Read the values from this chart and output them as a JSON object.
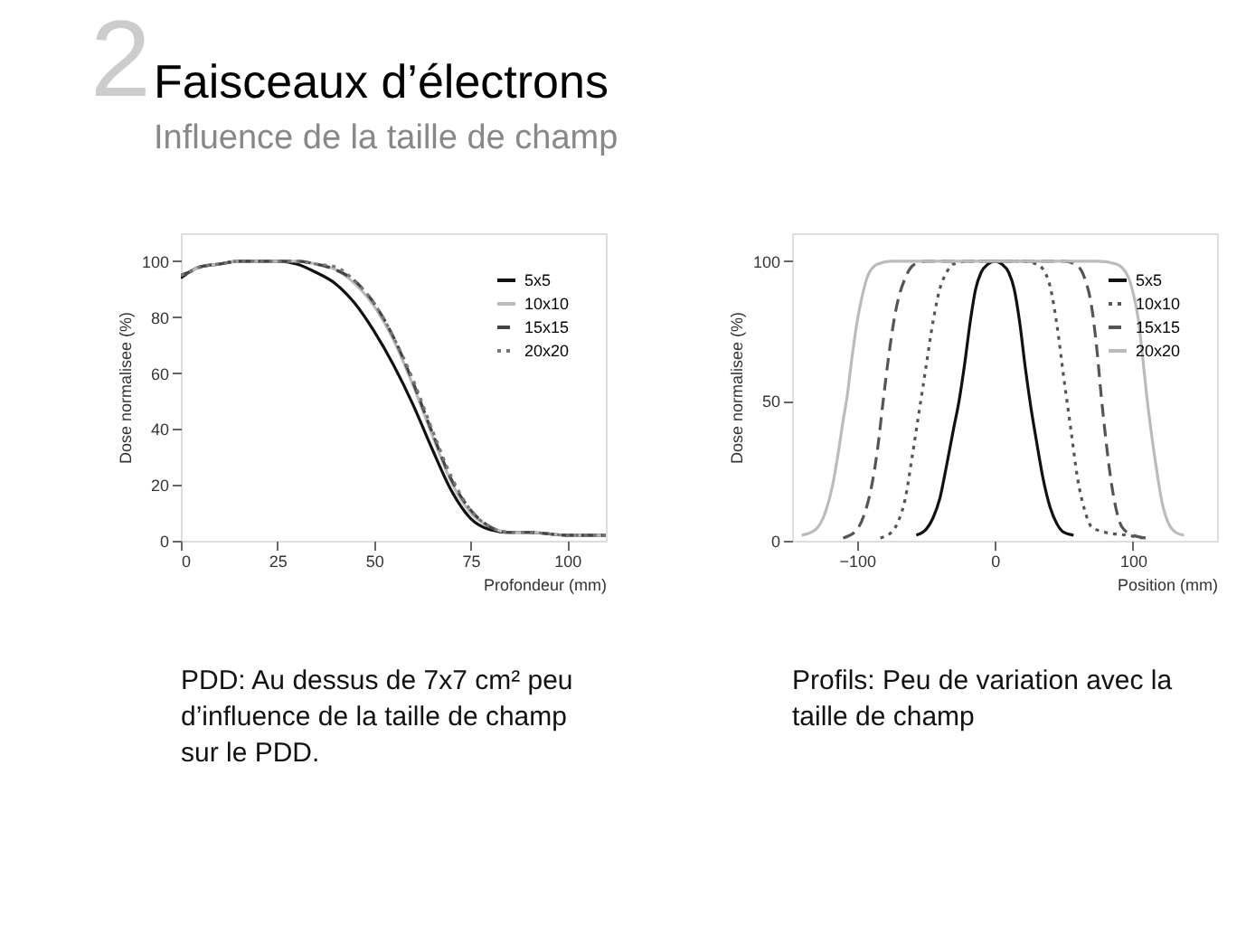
{
  "chart_data": [
    {
      "type": "line",
      "title": "Faisceaux d’électrons",
      "subtitle": "Influence de la taille de champ",
      "annotations": [
        "2",
        "PDD: Au dessus de 7x7 cm² peu d’influence de la taille de champ sur le PDD."
      ],
      "xlabel": "Profondeur (mm)",
      "ylabel": "Dose normalisee (%)",
      "xlim": [
        0,
        110
      ],
      "xticks": [
        0,
        25,
        50,
        75,
        100
      ],
      "ylim": [
        0,
        110
      ],
      "yticks": [
        0,
        20,
        40,
        60,
        80,
        100
      ],
      "grid": false,
      "legend": "top right",
      "marker": "none",
      "series": [
        {
          "name": "5x5",
          "color": "#111111",
          "line_style": "solid",
          "x": [
            0,
            2,
            5,
            10,
            15,
            20,
            25,
            30,
            35,
            40,
            45,
            50,
            55,
            60,
            65,
            70,
            75,
            80,
            85,
            90,
            100,
            110
          ],
          "values": [
            94,
            96,
            98,
            99,
            100,
            100,
            100,
            99,
            96,
            92,
            85,
            75,
            63,
            49,
            33,
            18,
            8,
            4,
            3,
            3,
            2,
            2
          ]
        },
        {
          "name": "10x10",
          "color": "#bbbbbb",
          "line_style": "solid",
          "x": [
            0,
            2,
            5,
            10,
            15,
            20,
            25,
            30,
            35,
            40,
            45,
            50,
            55,
            60,
            65,
            70,
            75,
            80,
            85,
            90,
            100,
            110
          ],
          "values": [
            95,
            96,
            98,
            99,
            100,
            100,
            100,
            100,
            99,
            97,
            92,
            84,
            72,
            56,
            38,
            21,
            10,
            5,
            3,
            3,
            2,
            2
          ]
        },
        {
          "name": "15x15",
          "color": "#444444",
          "line_style": "dashed",
          "x": [
            0,
            2,
            5,
            10,
            15,
            20,
            25,
            30,
            35,
            40,
            45,
            50,
            55,
            60,
            65,
            70,
            75,
            80,
            85,
            90,
            100,
            110
          ],
          "values": [
            95,
            96,
            98,
            99,
            100,
            100,
            100,
            100,
            99,
            97,
            93,
            85,
            73,
            57,
            39,
            22,
            11,
            5,
            3,
            3,
            2,
            2
          ]
        },
        {
          "name": "20x20",
          "color": "#777777",
          "line_style": "dotted",
          "x": [
            0,
            2,
            5,
            10,
            15,
            20,
            25,
            30,
            35,
            40,
            45,
            50,
            55,
            60,
            65,
            70,
            75,
            80,
            85,
            90,
            100,
            110
          ],
          "values": [
            95,
            96,
            98,
            99,
            100,
            100,
            100,
            100,
            99,
            98,
            93,
            85,
            73,
            58,
            40,
            23,
            11,
            5,
            3,
            3,
            2,
            2
          ]
        }
      ]
    },
    {
      "type": "line",
      "annotations": [
        "Profils: Peu de variation avec la taille de champ"
      ],
      "xlabel": "Position (mm)",
      "ylabel": "Dose normalisee (%)",
      "xlim": [
        -147,
        161
      ],
      "xticks": [
        -100,
        0,
        100
      ],
      "ylim": [
        0,
        110
      ],
      "yticks": [
        0,
        50,
        100
      ],
      "grid": false,
      "legend": "top right",
      "marker": "none",
      "series": [
        {
          "name": "5x5",
          "color": "#111111",
          "line_style": "solid",
          "x": [
            -57,
            -50,
            -45,
            -40,
            -35,
            -30,
            -26,
            -22,
            -18,
            -14,
            -10,
            -5,
            0,
            5,
            10,
            14,
            18,
            22,
            26,
            30,
            35,
            40,
            45,
            50,
            57
          ],
          "values": [
            2,
            4,
            8,
            15,
            27,
            40,
            50,
            63,
            78,
            90,
            96,
            99,
            100,
            99,
            96,
            90,
            78,
            62,
            48,
            36,
            22,
            12,
            6,
            3,
            2
          ]
        },
        {
          "name": "10x10",
          "color": "#555555",
          "line_style": "dotted",
          "x": [
            -83,
            -75,
            -70,
            -65,
            -60,
            -55,
            -50,
            -45,
            -40,
            -35,
            -30,
            -20,
            0,
            20,
            30,
            35,
            40,
            45,
            50,
            55,
            60,
            65,
            70,
            80,
            95,
            107
          ],
          "values": [
            1,
            3,
            7,
            15,
            30,
            46,
            62,
            78,
            90,
            96,
            99,
            100,
            100,
            100,
            99,
            97,
            91,
            77,
            58,
            40,
            22,
            11,
            5,
            3,
            2,
            1
          ]
        },
        {
          "name": "15x15",
          "color": "#555555",
          "line_style": "dashed",
          "x": [
            -110,
            -100,
            -95,
            -90,
            -85,
            -81,
            -77,
            -72,
            -65,
            -58,
            -50,
            0,
            50,
            58,
            65,
            70,
            74,
            77,
            80,
            84,
            88,
            92,
            100,
            110
          ],
          "values": [
            1,
            4,
            9,
            18,
            33,
            50,
            66,
            82,
            94,
            99,
            100,
            100,
            100,
            99,
            94,
            84,
            68,
            52,
            38,
            22,
            11,
            5,
            2,
            1
          ]
        },
        {
          "name": "20x20",
          "color": "#bbbbbb",
          "line_style": "solid",
          "x": [
            -140,
            -130,
            -123,
            -118,
            -114,
            -110,
            -107,
            -104,
            -100,
            -96,
            -92,
            -85,
            -75,
            0,
            75,
            88,
            96,
            100,
            104,
            107,
            110,
            113,
            117,
            121,
            126,
            131,
            137
          ],
          "values": [
            2,
            4,
            10,
            19,
            30,
            43,
            52,
            64,
            78,
            88,
            95,
            99,
            100,
            100,
            100,
            99,
            95,
            89,
            79,
            66,
            52,
            40,
            26,
            14,
            6,
            3,
            2
          ]
        }
      ]
    }
  ]
}
